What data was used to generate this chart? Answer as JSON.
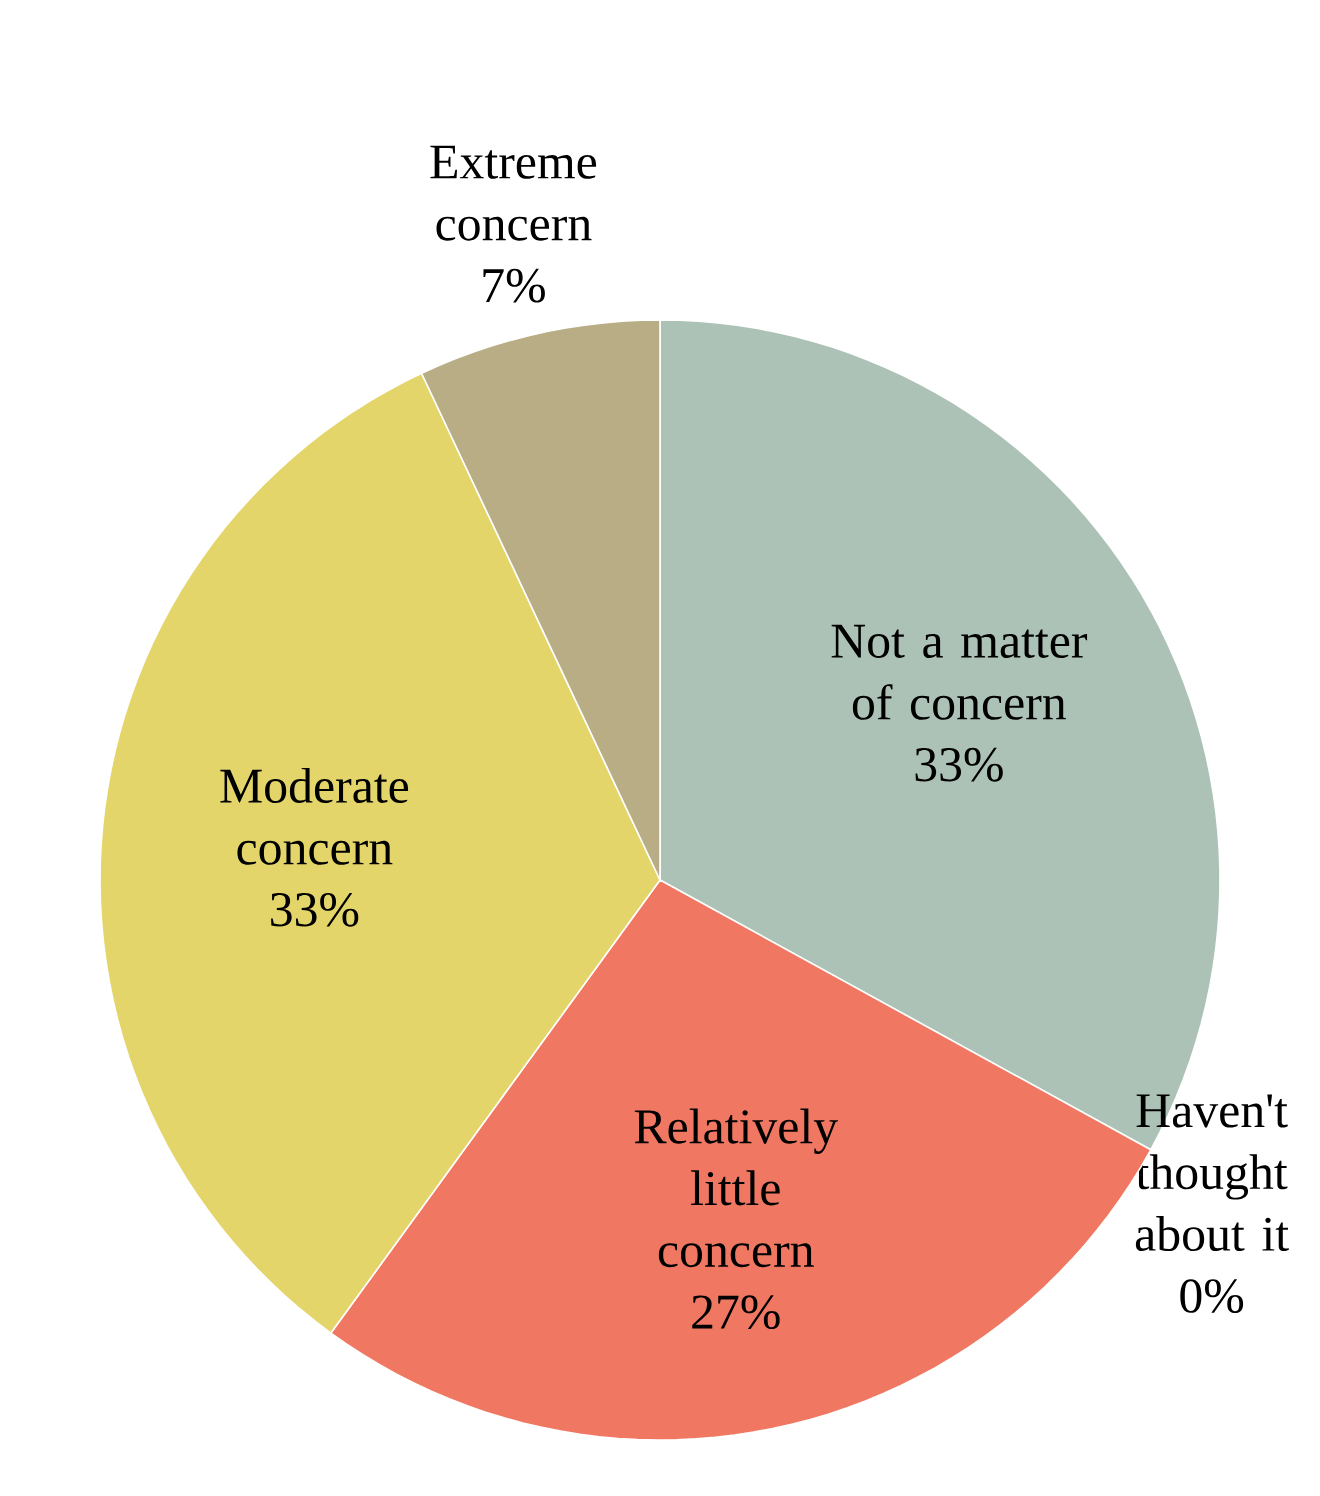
{
  "chart_data": {
    "type": "pie",
    "categories": [
      "Not a matter of concern",
      "Haven't thought about it",
      "Relatively little concern",
      "Moderate concern",
      "Extreme concern"
    ],
    "values": [
      33,
      0,
      27,
      33,
      7
    ],
    "value_labels": [
      "33%",
      "0%",
      "27%",
      "33%",
      "7%"
    ],
    "colors": [
      "#adc2b6",
      "#b0b0b0",
      "#f07862",
      "#e4d56a",
      "#b8ad84"
    ]
  }
}
